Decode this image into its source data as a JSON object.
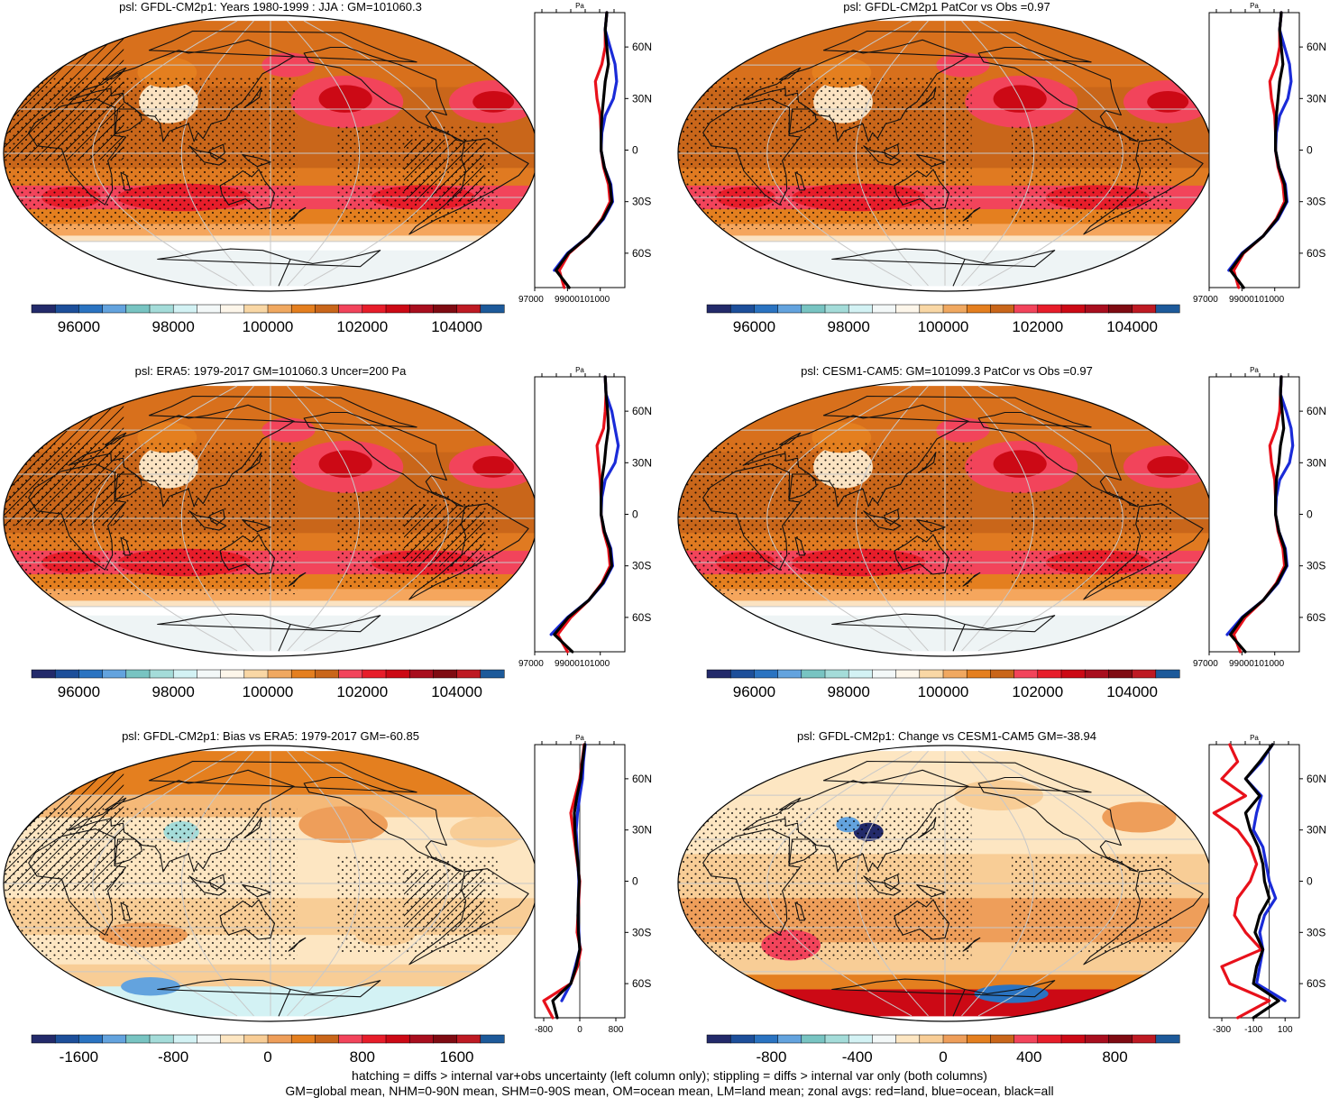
{
  "figure": {
    "footer_line1": "hatching = diffs > internal var+obs uncertainty (left column only); stippling = diffs > internal var only (both columns)",
    "footer_line2": "GM=global mean, NHM=0-90N mean, SHM=0-90S mean, OM=ocean mean, LM=land mean; zonal avgs: red=land, blue=ocean, black=all"
  },
  "colors": {
    "land": "#e8111b",
    "ocean": "#1a2bd8",
    "all": "#000000",
    "graticule": "#c8c8c8"
  },
  "palettes": {
    "abs": [
      "#232a6a",
      "#1d4f9a",
      "#2a73c1",
      "#63a3de",
      "#78c4c2",
      "#a4dcd9",
      "#d3f2f4",
      "#f3f8f8",
      "#fdf6ea",
      "#f9d7a5",
      "#f0a860",
      "#e47f1f",
      "#c9661a",
      "#f2445b",
      "#e71d2a",
      "#cc0915",
      "#a80e1e",
      "#7f0b12",
      "#be1a23",
      "#1d5a9a"
    ],
    "diff": [
      "#232a6a",
      "#1d4f9a",
      "#2a73c1",
      "#63a3de",
      "#78c4c2",
      "#a4dcd9",
      "#d3f2f4",
      "#f3f8f8",
      "#fde6c2",
      "#f8cd96",
      "#ee9e5a",
      "#e47f1f",
      "#c9661a",
      "#f2445b",
      "#e71d2a",
      "#cc0915",
      "#a80e1e",
      "#7f0b12",
      "#be1a23",
      "#1d5a9a"
    ]
  },
  "chart_data": [
    {
      "type": "heatmap",
      "title": "psl: GFDL-CM2p1: Years 1980-1999 : JJA : GM=101060.3",
      "field": "model",
      "colorbar": {
        "palette": "abs",
        "min": 95000,
        "max": 105000,
        "ticks": [
          "96000",
          "98000",
          "100000",
          "102000",
          "104000"
        ],
        "tick_values": [
          96000,
          98000,
          100000,
          102000,
          104000
        ]
      },
      "hatch": true,
      "stipple": true,
      "profile": {
        "unit": "Pa",
        "xlim": [
          97000,
          102500
        ],
        "xtick_values": [
          97000,
          99000,
          101000
        ],
        "xtick_labels": [
          "97000",
          "99000101000"
        ],
        "ylabels": [
          "60N",
          "30N",
          "0",
          "30S",
          "60S"
        ],
        "lat": [
          80,
          70,
          60,
          50,
          40,
          30,
          20,
          10,
          0,
          -10,
          -20,
          -30,
          -40,
          -50,
          -60,
          -70,
          -80
        ],
        "land": [
          101400,
          101300,
          101300,
          101100,
          100700,
          100800,
          101000,
          101050,
          101050,
          101200,
          101500,
          101600,
          101100,
          100300,
          99100,
          98500,
          98800
        ],
        "ocean": [
          101400,
          101300,
          101600,
          101900,
          102000,
          101800,
          101300,
          101100,
          101050,
          101250,
          101650,
          101750,
          101200,
          100300,
          99000,
          98200,
          null
        ],
        "all": [
          101400,
          101300,
          101400,
          101500,
          101300,
          101200,
          101100,
          101050,
          101050,
          101250,
          101600,
          101700,
          101150,
          100300,
          99050,
          98300,
          99100
        ],
        "zero_line": false
      }
    },
    {
      "type": "heatmap",
      "title": "psl: GFDL-CM2p1 PatCor vs Obs =0.97",
      "field": "model",
      "colorbar": {
        "palette": "abs",
        "min": 95000,
        "max": 105000,
        "ticks": [
          "96000",
          "98000",
          "100000",
          "102000",
          "104000"
        ],
        "tick_values": [
          96000,
          98000,
          100000,
          102000,
          104000
        ]
      },
      "hatch": false,
      "stipple": true,
      "profile": {
        "unit": "Pa",
        "xlim": [
          97000,
          102500
        ],
        "xtick_values": [
          97000,
          99000,
          101000
        ],
        "xtick_labels": [
          "97000",
          "99000101000"
        ],
        "ylabels": [
          "60N",
          "30N",
          "0",
          "30S",
          "60S"
        ],
        "lat": [
          80,
          70,
          60,
          50,
          40,
          30,
          20,
          10,
          0,
          -10,
          -20,
          -30,
          -40,
          -50,
          -60,
          -70,
          -80
        ],
        "land": [
          101400,
          101300,
          101300,
          101100,
          100700,
          100800,
          101000,
          101050,
          101050,
          101200,
          101500,
          101600,
          101100,
          100300,
          99100,
          98500,
          98800
        ],
        "ocean": [
          101400,
          101300,
          101600,
          101900,
          102000,
          101800,
          101300,
          101100,
          101050,
          101250,
          101650,
          101750,
          101200,
          100300,
          99000,
          98200,
          null
        ],
        "all": [
          101400,
          101300,
          101400,
          101500,
          101300,
          101200,
          101100,
          101050,
          101050,
          101250,
          101600,
          101700,
          101150,
          100300,
          99050,
          98300,
          99100
        ],
        "zero_line": false
      }
    },
    {
      "type": "heatmap",
      "title": "psl: ERA5: 1979-2017 GM=101060.3 Uncer=200 Pa",
      "field": "obs",
      "colorbar": {
        "palette": "abs",
        "min": 95000,
        "max": 105000,
        "ticks": [
          "96000",
          "98000",
          "100000",
          "102000",
          "104000"
        ],
        "tick_values": [
          96000,
          98000,
          100000,
          102000,
          104000
        ]
      },
      "hatch": true,
      "stipple": true,
      "profile": {
        "unit": "Pa",
        "xlim": [
          97000,
          102500
        ],
        "xtick_values": [
          97000,
          99000,
          101000
        ],
        "xtick_labels": [
          "97000",
          "99000101000"
        ],
        "ylabels": [
          "60N",
          "30N",
          "0",
          "30S",
          "60S"
        ],
        "lat": [
          80,
          70,
          60,
          50,
          40,
          30,
          20,
          10,
          0,
          -10,
          -20,
          -30,
          -40,
          -50,
          -60,
          -70,
          -80
        ],
        "land": [
          101300,
          101350,
          101300,
          101200,
          100800,
          100900,
          101000,
          101050,
          101050,
          101200,
          101500,
          101600,
          101100,
          100300,
          99200,
          98400,
          99000
        ],
        "ocean": [
          101300,
          101350,
          101700,
          101900,
          102100,
          101900,
          101300,
          101100,
          101050,
          101250,
          101650,
          101750,
          101200,
          100300,
          99000,
          98000,
          null
        ],
        "all": [
          101300,
          101350,
          101450,
          101500,
          101350,
          101250,
          101100,
          101050,
          101050,
          101250,
          101600,
          101700,
          101150,
          100300,
          99050,
          98200,
          99300
        ],
        "zero_line": false
      }
    },
    {
      "type": "heatmap",
      "title": "psl: CESM1-CAM5: GM=101099.3 PatCor vs Obs =0.97",
      "field": "model2",
      "colorbar": {
        "palette": "abs",
        "min": 95000,
        "max": 105000,
        "ticks": [
          "96000",
          "98000",
          "100000",
          "102000",
          "104000"
        ],
        "tick_values": [
          96000,
          98000,
          100000,
          102000,
          104000
        ]
      },
      "hatch": false,
      "stipple": true,
      "profile": {
        "unit": "Pa",
        "xlim": [
          97000,
          102500
        ],
        "xtick_values": [
          97000,
          99000,
          101000
        ],
        "xtick_labels": [
          "97000",
          "99000101000"
        ],
        "ylabels": [
          "60N",
          "30N",
          "0",
          "30S",
          "60S"
        ],
        "lat": [
          80,
          70,
          60,
          50,
          40,
          30,
          20,
          10,
          0,
          -10,
          -20,
          -30,
          -40,
          -50,
          -60,
          -70,
          -80
        ],
        "land": [
          101400,
          101350,
          101300,
          101100,
          100700,
          100800,
          101000,
          101050,
          101050,
          101200,
          101500,
          101600,
          101100,
          100300,
          99200,
          98500,
          98900
        ],
        "ocean": [
          101400,
          101350,
          101700,
          102000,
          102100,
          101900,
          101300,
          101100,
          101050,
          101250,
          101650,
          101750,
          101200,
          100300,
          99000,
          98100,
          null
        ],
        "all": [
          101400,
          101350,
          101450,
          101550,
          101350,
          101250,
          101100,
          101050,
          101050,
          101250,
          101600,
          101700,
          101150,
          100300,
          99050,
          98300,
          99200
        ],
        "zero_line": false
      }
    },
    {
      "type": "heatmap",
      "title": "psl: GFDL-CM2p1: Bias vs ERA5: 1979-2017 GM=-60.85",
      "field": "bias",
      "colorbar": {
        "palette": "diff",
        "min": -2000,
        "max": 2000,
        "ticks": [
          "-1600",
          "-800",
          "0",
          "800",
          "1600"
        ],
        "tick_values": [
          -1600,
          -800,
          0,
          800,
          1600
        ]
      },
      "hatch": true,
      "stipple": true,
      "profile": {
        "unit": "Pa",
        "xlim": [
          -1000,
          1000
        ],
        "xtick_values": [
          -800,
          0,
          800
        ],
        "xtick_labels": [
          "-800",
          "0",
          "800"
        ],
        "ylabels": [
          "60N",
          "30N",
          "0",
          "30S",
          "60S"
        ],
        "lat": [
          80,
          70,
          60,
          50,
          40,
          30,
          20,
          10,
          0,
          -10,
          -20,
          -30,
          -40,
          -50,
          -60,
          -70,
          -80
        ],
        "land": [
          100,
          50,
          0,
          -100,
          -200,
          -150,
          -100,
          -50,
          0,
          -20,
          -40,
          -60,
          20,
          -50,
          -200,
          -800,
          -600
        ],
        "ocean": [
          120,
          80,
          60,
          0,
          -50,
          -80,
          -60,
          -40,
          -20,
          -30,
          -40,
          -20,
          0,
          -100,
          -200,
          -400,
          null
        ],
        "all": [
          110,
          60,
          20,
          -60,
          -120,
          -110,
          -80,
          -40,
          -10,
          -30,
          -40,
          -30,
          0,
          -80,
          -200,
          -600,
          -500
        ],
        "zero_line": true
      }
    },
    {
      "type": "heatmap",
      "title": "psl: GFDL-CM2p1: Change vs CESM1-CAM5 GM=-38.94",
      "field": "change",
      "colorbar": {
        "palette": "diff",
        "min": -1100,
        "max": 1100,
        "ticks": [
          "-800",
          "-400",
          "0",
          "400",
          "800"
        ],
        "tick_values": [
          -800,
          -400,
          0,
          400,
          800
        ]
      },
      "hatch": false,
      "stipple": true,
      "profile": {
        "unit": "Pa",
        "xlim": [
          -380,
          190
        ],
        "xtick_values": [
          -300,
          -100,
          100
        ],
        "xtick_labels": [
          "-300",
          "-100",
          "100"
        ],
        "ylabels": [
          "60N",
          "30N",
          "0",
          "30S",
          "60S"
        ],
        "lat": [
          80,
          70,
          60,
          50,
          40,
          30,
          20,
          10,
          0,
          -10,
          -20,
          -30,
          -40,
          -50,
          -60,
          -70,
          -80
        ],
        "land": [
          -250,
          -200,
          -300,
          -150,
          -350,
          -200,
          -120,
          -80,
          -120,
          -200,
          -220,
          -150,
          -50,
          -300,
          -250,
          0,
          -200
        ],
        "ocean": [
          20,
          -50,
          -150,
          -50,
          -80,
          -100,
          -40,
          -20,
          0,
          40,
          -30,
          -60,
          -40,
          -60,
          -80,
          100,
          null
        ],
        "all": [
          20,
          -60,
          -150,
          -60,
          -150,
          -120,
          -70,
          -40,
          -30,
          0,
          -60,
          -90,
          -40,
          -80,
          -100,
          60,
          -100
        ],
        "zero_line": true
      }
    }
  ]
}
